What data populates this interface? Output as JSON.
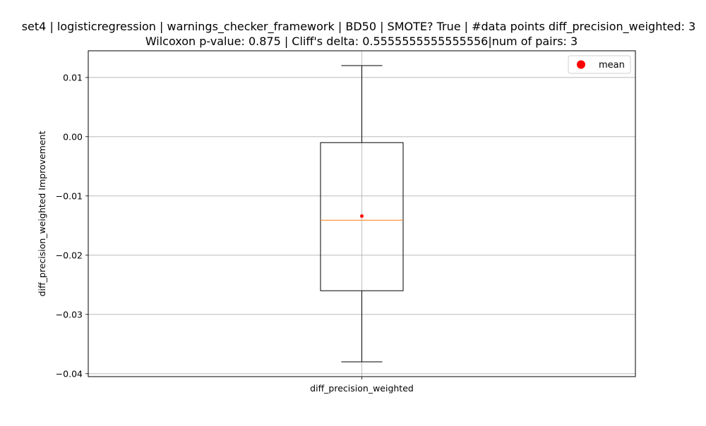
{
  "chart_data": {
    "type": "box",
    "title_line1": "set4 | logisticregression | warnings_checker_framework | BD50 | SMOTE? True | #data points diff_precision_weighted: 3",
    "title_line2": "Wilcoxon p-value: 0.875 | Cliff's delta: 0.5555555555555556|num of pairs: 3",
    "xlabel": "",
    "ylabel": "diff_precision_weighted Improvement",
    "categories": [
      "diff_precision_weighted"
    ],
    "ylim": [
      -0.0405,
      0.0145
    ],
    "yticks": [
      0.01,
      0.0,
      -0.01,
      -0.02,
      -0.03,
      -0.04
    ],
    "ytick_labels": [
      "0.01",
      "0.00",
      "−0.01",
      "−0.02",
      "−0.03",
      "−0.04"
    ],
    "grid": true,
    "legend": {
      "position": "upper-right",
      "entries": [
        {
          "label": "mean",
          "color": "#ff0000",
          "marker": "circle"
        }
      ]
    },
    "boxes": [
      {
        "category": "diff_precision_weighted",
        "whisker_low": -0.038,
        "q1": -0.026,
        "median": -0.0141,
        "q3": -0.001,
        "whisker_high": 0.012,
        "mean": -0.0134
      }
    ],
    "colors": {
      "box": "#000000",
      "median": "#ff7f0e",
      "mean": "#ff0000",
      "grid": "#b0b0b0"
    }
  }
}
